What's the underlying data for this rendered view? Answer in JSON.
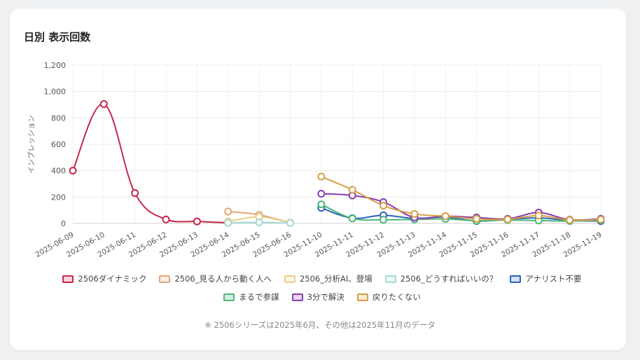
{
  "card": {
    "title": "日別 表示回数"
  },
  "note": "※ 2506シリーズは2025年6月、その他は2025年11月のデータ",
  "chart_data": {
    "type": "line",
    "title": "",
    "ylabel": "インプレッション",
    "xlabel": "",
    "ylim": [
      0,
      1200
    ],
    "yticks": [
      "0",
      "200",
      "400",
      "600",
      "800",
      "1,000",
      "1,200"
    ],
    "grid": true,
    "legend_position": "bottom",
    "categories": [
      "2025-06-09",
      "2025-06-10",
      "2025-06-11",
      "2025-06-12",
      "2025-06-13",
      "2025-06-14",
      "2025-06-15",
      "2025-06-16",
      "2025-11-10",
      "2025-11-11",
      "2025-11-12",
      "2025-11-13",
      "2025-11-14",
      "2025-11-15",
      "2025-11-16",
      "2025-11-17",
      "2025-11-18",
      "2025-11-19"
    ],
    "series": [
      {
        "name": "2506ダイナミック",
        "color": "#c8284a",
        "values": [
          400,
          905,
          230,
          30,
          15,
          5,
          null,
          null,
          null,
          null,
          null,
          null,
          null,
          null,
          null,
          null,
          null,
          null
        ]
      },
      {
        "name": "2506_見る人から動く人へ",
        "color": "#e2a77a",
        "values": [
          null,
          null,
          null,
          null,
          null,
          90,
          65,
          5,
          null,
          null,
          null,
          null,
          null,
          null,
          null,
          null,
          null,
          null
        ]
      },
      {
        "name": "2506_分析AI、登場",
        "color": "#e9cf85",
        "values": [
          null,
          null,
          null,
          null,
          null,
          15,
          50,
          5,
          null,
          null,
          null,
          null,
          null,
          null,
          null,
          null,
          null,
          null
        ]
      },
      {
        "name": "2506_どうすればいいの？",
        "color": "#a5dbd3",
        "values": [
          null,
          null,
          null,
          null,
          null,
          5,
          8,
          3,
          null,
          null,
          null,
          null,
          null,
          null,
          null,
          null,
          null,
          null
        ]
      },
      {
        "name": "アナリスト不要",
        "color": "#2d63b9",
        "values": [
          null,
          null,
          null,
          null,
          null,
          null,
          null,
          null,
          118,
          40,
          62,
          38,
          48,
          18,
          30,
          42,
          22,
          18
        ]
      },
      {
        "name": "まるで参謀",
        "color": "#4cb57a",
        "values": [
          null,
          null,
          null,
          null,
          null,
          null,
          null,
          null,
          145,
          38,
          28,
          30,
          34,
          20,
          25,
          22,
          18,
          25
        ]
      },
      {
        "name": "3分で解決",
        "color": "#8a3cb1",
        "values": [
          null,
          null,
          null,
          null,
          null,
          null,
          null,
          null,
          225,
          212,
          162,
          45,
          55,
          45,
          35,
          82,
          28,
          35
        ]
      },
      {
        "name": "戻りたくない",
        "color": "#d6a043",
        "values": [
          null,
          null,
          null,
          null,
          null,
          null,
          null,
          null,
          355,
          255,
          135,
          72,
          55,
          35,
          30,
          60,
          25,
          30
        ]
      }
    ]
  }
}
